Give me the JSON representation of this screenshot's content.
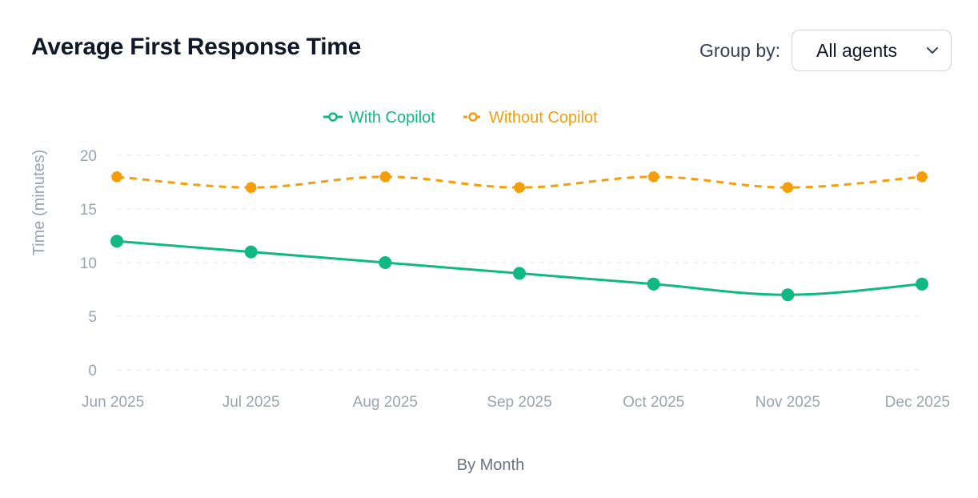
{
  "header": {
    "title": "Average First Response Time",
    "group_by_label": "Group by:",
    "group_by_value": "All agents"
  },
  "colors": {
    "with": "#10b981",
    "without": "#f59e0b",
    "grid": "#e5e7eb"
  },
  "chart_data": {
    "type": "line",
    "title": "Average First Response Time",
    "xlabel": "By Month",
    "ylabel": "Time (minutes)",
    "categories": [
      "Jun 2025",
      "Jul 2025",
      "Aug 2025",
      "Sep 2025",
      "Oct 2025",
      "Nov 2025",
      "Dec 2025"
    ],
    "ylim": [
      0,
      20
    ],
    "yticks": [
      0,
      5,
      10,
      15,
      20
    ],
    "legend_position": "top-center",
    "grid": true,
    "series": [
      {
        "name": "With Copilot",
        "values": [
          12,
          11,
          10,
          9,
          8,
          7,
          8
        ],
        "style": "solid"
      },
      {
        "name": "Without Copilot",
        "values": [
          18,
          17,
          18,
          17,
          18,
          17,
          18
        ],
        "style": "dashed"
      }
    ]
  }
}
